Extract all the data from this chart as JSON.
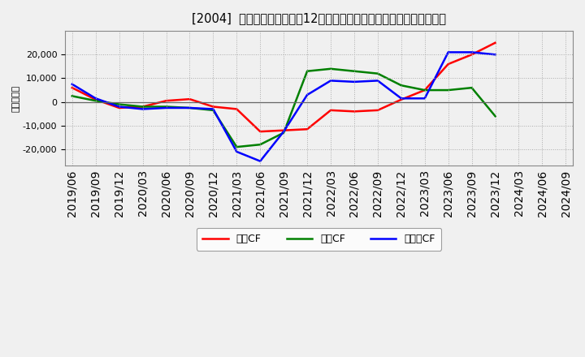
{
  "title": "[2004]  キャッシュフローの12か月移動合計の対前年同期増減額の推移",
  "ylabel": "（百万円）",
  "background_color": "#f0f0f0",
  "plot_bg_color": "#f0f0f0",
  "grid_color": "#aaaaaa",
  "dates": [
    "2019/06",
    "2019/09",
    "2019/12",
    "2020/03",
    "2020/06",
    "2020/09",
    "2020/12",
    "2021/03",
    "2021/06",
    "2021/09",
    "2021/12",
    "2022/03",
    "2022/06",
    "2022/09",
    "2022/12",
    "2023/03",
    "2023/06",
    "2023/09",
    "2023/12",
    "2024/03",
    "2024/06",
    "2024/09"
  ],
  "eigyo_cf": [
    6000,
    1000,
    -2500,
    -2000,
    500,
    1200,
    -2000,
    -3000,
    -12500,
    -12000,
    -11500,
    -3500,
    -4000,
    -3500,
    1000,
    5000,
    16000,
    20000,
    25000,
    null,
    null,
    null
  ],
  "toshi_cf": [
    2500,
    500,
    -1000,
    -2000,
    -2000,
    -2500,
    -3500,
    -19000,
    -18000,
    -13000,
    13000,
    14000,
    13000,
    12000,
    7000,
    5000,
    5000,
    6000,
    -6000,
    null,
    null,
    null
  ],
  "free_cf": [
    7500,
    1500,
    -2000,
    -3000,
    -2500,
    -2500,
    -3000,
    -21000,
    -25000,
    -12500,
    3000,
    9000,
    8500,
    9000,
    1500,
    1500,
    21000,
    21000,
    20000,
    null,
    null,
    null
  ],
  "eigyo_color": "#ff0000",
  "toshi_color": "#008000",
  "free_color": "#0000ff",
  "ylim": [
    -27000,
    30000
  ],
  "yticks": [
    -20000,
    -10000,
    0,
    10000,
    20000
  ],
  "line_width": 1.8,
  "legend_labels": [
    "営業CF",
    "投資CF",
    "フリーCF"
  ]
}
